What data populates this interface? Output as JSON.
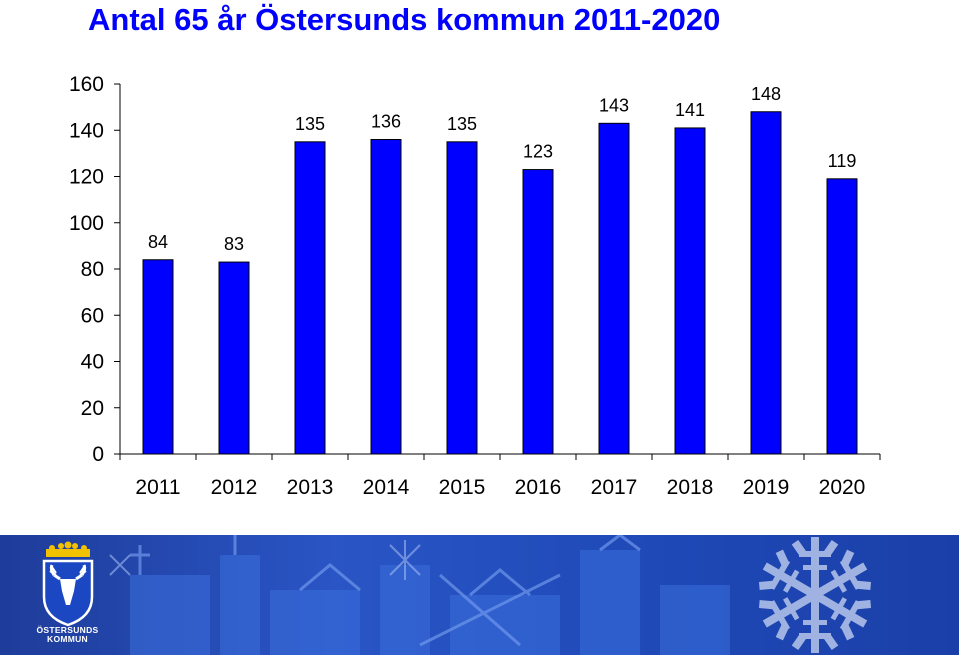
{
  "chart_data": {
    "type": "bar",
    "title": "Antal 65 år Östersunds kommun 2011-2020",
    "categories": [
      "2011",
      "2012",
      "2013",
      "2014",
      "2015",
      "2016",
      "2017",
      "2018",
      "2019",
      "2020"
    ],
    "values": [
      84,
      83,
      135,
      136,
      135,
      123,
      143,
      141,
      148,
      119
    ],
    "ylim": [
      0,
      160
    ],
    "yticks": [
      0,
      20,
      40,
      60,
      80,
      100,
      120,
      140,
      160
    ],
    "grid": false,
    "legend": "none",
    "bar_color": "#0000ff",
    "bar_border_color": "#000000"
  },
  "banner": {
    "logo_line1": "ÖSTERSUNDS",
    "logo_line2": "KOMMUN",
    "logo_icon": "moose-coat-of-arms-icon",
    "background_color": "#1f4ab8"
  }
}
